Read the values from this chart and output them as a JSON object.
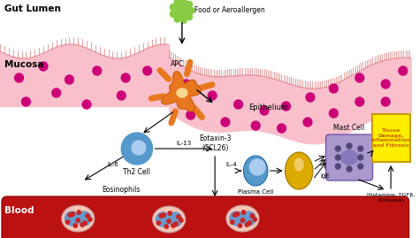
{
  "bg_color": "#ffffff",
  "gut_lumen_label": "Gut Lumen",
  "mucosa_label": "Mucosa",
  "blood_label": "Blood",
  "allergen_label": "Food or Aeroallergen",
  "apc_label": "APC",
  "th2_label": "Th2 Cell",
  "il6_label": "IL-6",
  "il13_label": "IL-13",
  "eotaxin_label": "Eotaxin-3\n(CCL26)",
  "eosinophil_label": "Eosinophils",
  "epithelium_label": "Epithelium",
  "plasma_label": "Plasma Cell",
  "il4_label": "IL-4",
  "ige_label": "IgE",
  "mast_label": "Mast Cell",
  "tissue_label": "Tissue\nDamage,\nInflammation\nand Fibrosis",
  "histamine_label": "Histamine, TGFβ,\nProteases",
  "mucosa_fill": "#f9c0cc",
  "mucosa_edge": "#e8909a",
  "blood_color": "#bb1111",
  "allergen_color": "#88cc44",
  "apc_color": "#e87820",
  "th2_color": "#5599cc",
  "th2_nuc_color": "#aaccee",
  "eosinophil_outer": "#f5c5b5",
  "eosinophil_nuc": "#6699cc",
  "eosinophil_gran": "#cc2222",
  "plasma_color": "#5599cc",
  "plasma_nuc_color": "#aaccee",
  "egg_color": "#ddaa00",
  "egg_nuc_color": "#f0cc66",
  "mast_color": "#aa99cc",
  "mast_nuc_color": "#8877bb",
  "mast_gran_color": "#554477",
  "tissue_box_color": "#ffee00",
  "tissue_text_color": "#cc6600",
  "magenta_color": "#cc0077",
  "label_color": "#000000",
  "mucosa_cilia_color": "#e09090"
}
